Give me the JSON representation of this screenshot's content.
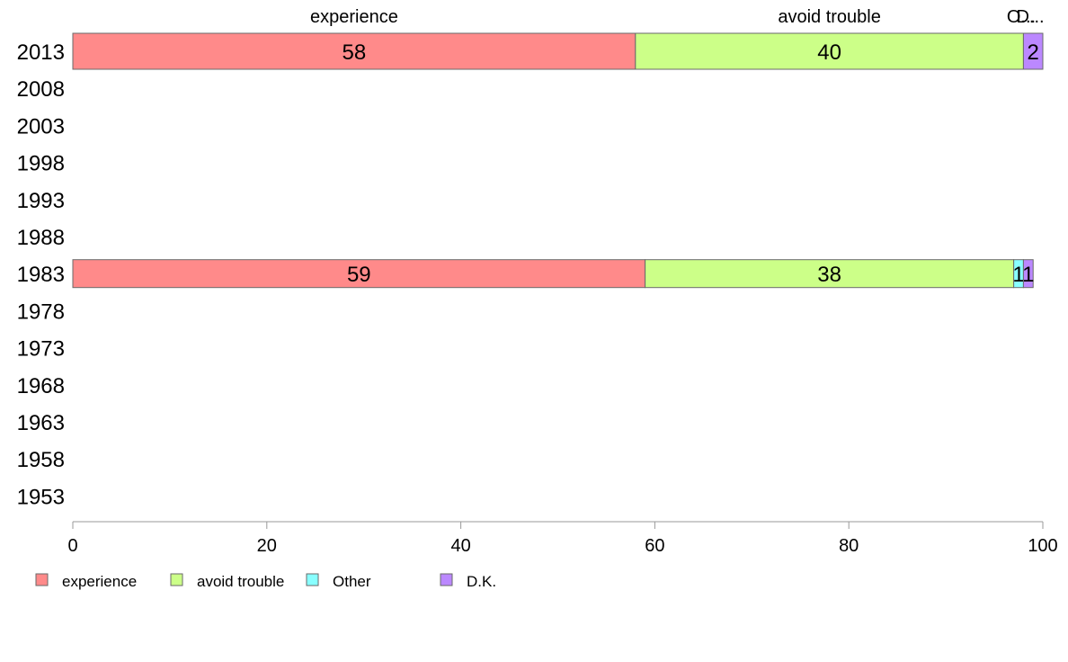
{
  "chart_data": {
    "type": "bar",
    "orientation": "horizontal",
    "stacked": true,
    "categories": [
      "2013",
      "2008",
      "2003",
      "1998",
      "1993",
      "1988",
      "1983",
      "1978",
      "1973",
      "1968",
      "1963",
      "1958",
      "1953"
    ],
    "series": [
      {
        "name": "experience",
        "color": "#FF8A8A",
        "values": [
          58,
          null,
          null,
          null,
          null,
          null,
          59,
          null,
          null,
          null,
          null,
          null,
          null
        ]
      },
      {
        "name": "avoid trouble",
        "color": "#CCFF88",
        "values": [
          40,
          null,
          null,
          null,
          null,
          null,
          38,
          null,
          null,
          null,
          null,
          null,
          null
        ]
      },
      {
        "name": "Other",
        "color": "#88FFFF",
        "values": [
          0,
          null,
          null,
          null,
          null,
          null,
          1,
          null,
          null,
          null,
          null,
          null,
          null
        ]
      },
      {
        "name": "D.K.",
        "color": "#BB88FF",
        "values": [
          2,
          null,
          null,
          null,
          null,
          null,
          1,
          null,
          null,
          null,
          null,
          null,
          null
        ]
      }
    ],
    "top_labels": [
      "experience",
      "avoid trouble",
      "O...",
      "D..."
    ],
    "xlim": [
      0,
      100
    ],
    "xticks": [
      0,
      20,
      40,
      60,
      80,
      100
    ],
    "grid": false,
    "legend_position": "bottom-left"
  }
}
